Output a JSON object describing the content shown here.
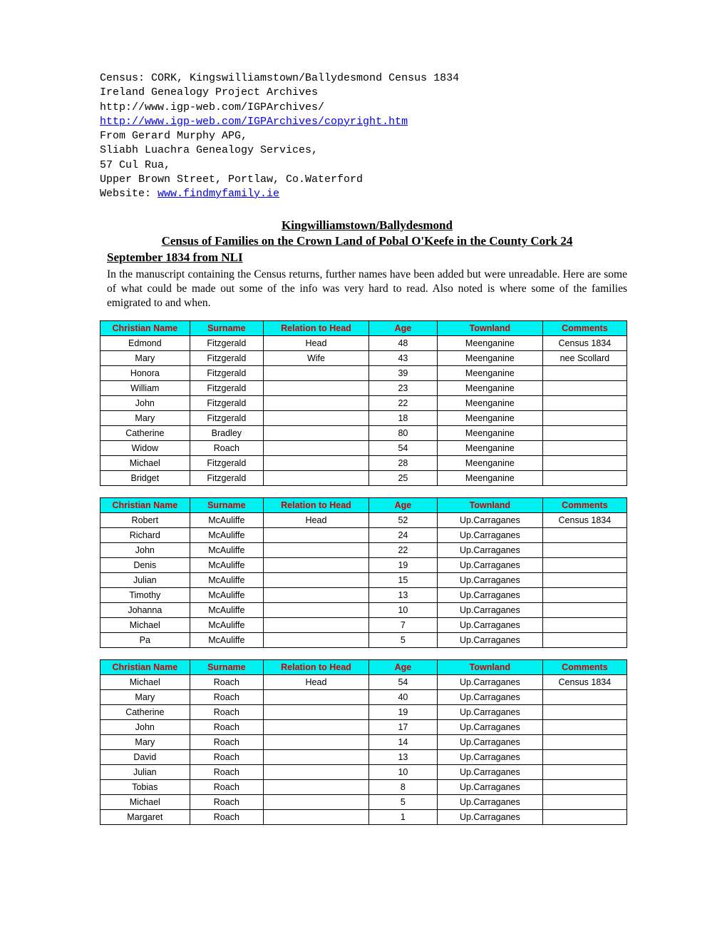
{
  "header": {
    "lines": [
      "Census: CORK, Kingswilliamstown/Ballydesmond Census 1834",
      "Ireland Genealogy Project Archives",
      "http://www.igp-web.com/IGPArchives/"
    ],
    "link1": "http://www.igp-web.com/IGPArchives/copyright.htm",
    "lines2": [
      "From Gerard Murphy APG,",
      "Sliabh Luachra Genealogy Services,",
      "57 Cul Rua,",
      "Upper Brown Street, Portlaw, Co.Waterford"
    ],
    "website_label": "Website: ",
    "website_link": "www.findmyfamily.ie"
  },
  "title": {
    "line1": "Kingwilliamstown/Ballydesmond",
    "line2": "Census  of  Families  on  the  Crown  Land  of  Pobal  O'Keefe  in  the  County Cork 24",
    "line3": "September 1834 from NLI"
  },
  "description": "In the manuscript containing the Census returns, further names have been added but were unreadable. Here are some of what could be made out some of the info was very hard to read. Also noted is where some of the families emigrated to and when.",
  "columns": [
    "Christian Name",
    "Surname",
    "Relation to Head",
    "Age",
    "Townland",
    "Comments"
  ],
  "column_widths": [
    "17%",
    "14%",
    "20%",
    "13%",
    "20%",
    "16%"
  ],
  "colors": {
    "header_bg": "#00f0f0",
    "header_text": "#cc0000",
    "link": "#0000ee",
    "border": "#000000",
    "background": "#ffffff"
  },
  "tables": [
    {
      "rows": [
        [
          "Edmond",
          "Fitzgerald",
          "Head",
          "48",
          "Meenganine",
          "Census 1834"
        ],
        [
          "Mary",
          "Fitzgerald",
          "Wife",
          "43",
          "Meenganine",
          "nee Scollard"
        ],
        [
          "Honora",
          "Fitzgerald",
          "",
          "39",
          "Meenganine",
          ""
        ],
        [
          "William",
          "Fitzgerald",
          "",
          "23",
          "Meenganine",
          ""
        ],
        [
          "John",
          "Fitzgerald",
          "",
          "22",
          "Meenganine",
          ""
        ],
        [
          "Mary",
          "Fitzgerald",
          "",
          "18",
          "Meenganine",
          ""
        ],
        [
          "Catherine",
          "Bradley",
          "",
          "80",
          "Meenganine",
          ""
        ],
        [
          "Widow",
          "Roach",
          "",
          "54",
          "Meenganine",
          ""
        ],
        [
          "Michael",
          "Fitzgerald",
          "",
          "28",
          "Meenganine",
          ""
        ],
        [
          "Bridget",
          "Fitzgerald",
          "",
          "25",
          "Meenganine",
          ""
        ]
      ]
    },
    {
      "rows": [
        [
          "Robert",
          "McAuliffe",
          "Head",
          "52",
          "Up.Carraganes",
          "Census 1834"
        ],
        [
          "Richard",
          "McAuliffe",
          "",
          "24",
          "Up.Carraganes",
          ""
        ],
        [
          "John",
          "McAuliffe",
          "",
          "22",
          "Up.Carraganes",
          ""
        ],
        [
          "Denis",
          "McAuliffe",
          "",
          "19",
          "Up.Carraganes",
          ""
        ],
        [
          "Julian",
          "McAuliffe",
          "",
          "15",
          "Up.Carraganes",
          ""
        ],
        [
          "Timothy",
          "McAuliffe",
          "",
          "13",
          "Up.Carraganes",
          ""
        ],
        [
          "Johanna",
          "McAuliffe",
          "",
          "10",
          "Up.Carraganes",
          ""
        ],
        [
          "Michael",
          "McAuliffe",
          "",
          "7",
          "Up.Carraganes",
          ""
        ],
        [
          "Pa",
          "McAuliffe",
          "",
          "5",
          "Up.Carraganes",
          ""
        ]
      ]
    },
    {
      "rows": [
        [
          "Michael",
          "Roach",
          "Head",
          "54",
          "Up.Carraganes",
          "Census 1834"
        ],
        [
          "Mary",
          "Roach",
          "",
          "40",
          "Up.Carraganes",
          ""
        ],
        [
          "Catherine",
          "Roach",
          "",
          "19",
          "Up.Carraganes",
          ""
        ],
        [
          "John",
          "Roach",
          "",
          "17",
          "Up.Carraganes",
          ""
        ],
        [
          "Mary",
          "Roach",
          "",
          "14",
          "Up.Carraganes",
          ""
        ],
        [
          "David",
          "Roach",
          "",
          "13",
          "Up.Carraganes",
          ""
        ],
        [
          "Julian",
          "Roach",
          "",
          "10",
          "Up.Carraganes",
          ""
        ],
        [
          "Tobias",
          "Roach",
          "",
          "8",
          "Up.Carraganes",
          ""
        ],
        [
          "Michael",
          "Roach",
          "",
          "5",
          "Up.Carraganes",
          ""
        ],
        [
          "Margaret",
          "Roach",
          "",
          "1",
          "Up.Carraganes",
          ""
        ]
      ]
    }
  ]
}
